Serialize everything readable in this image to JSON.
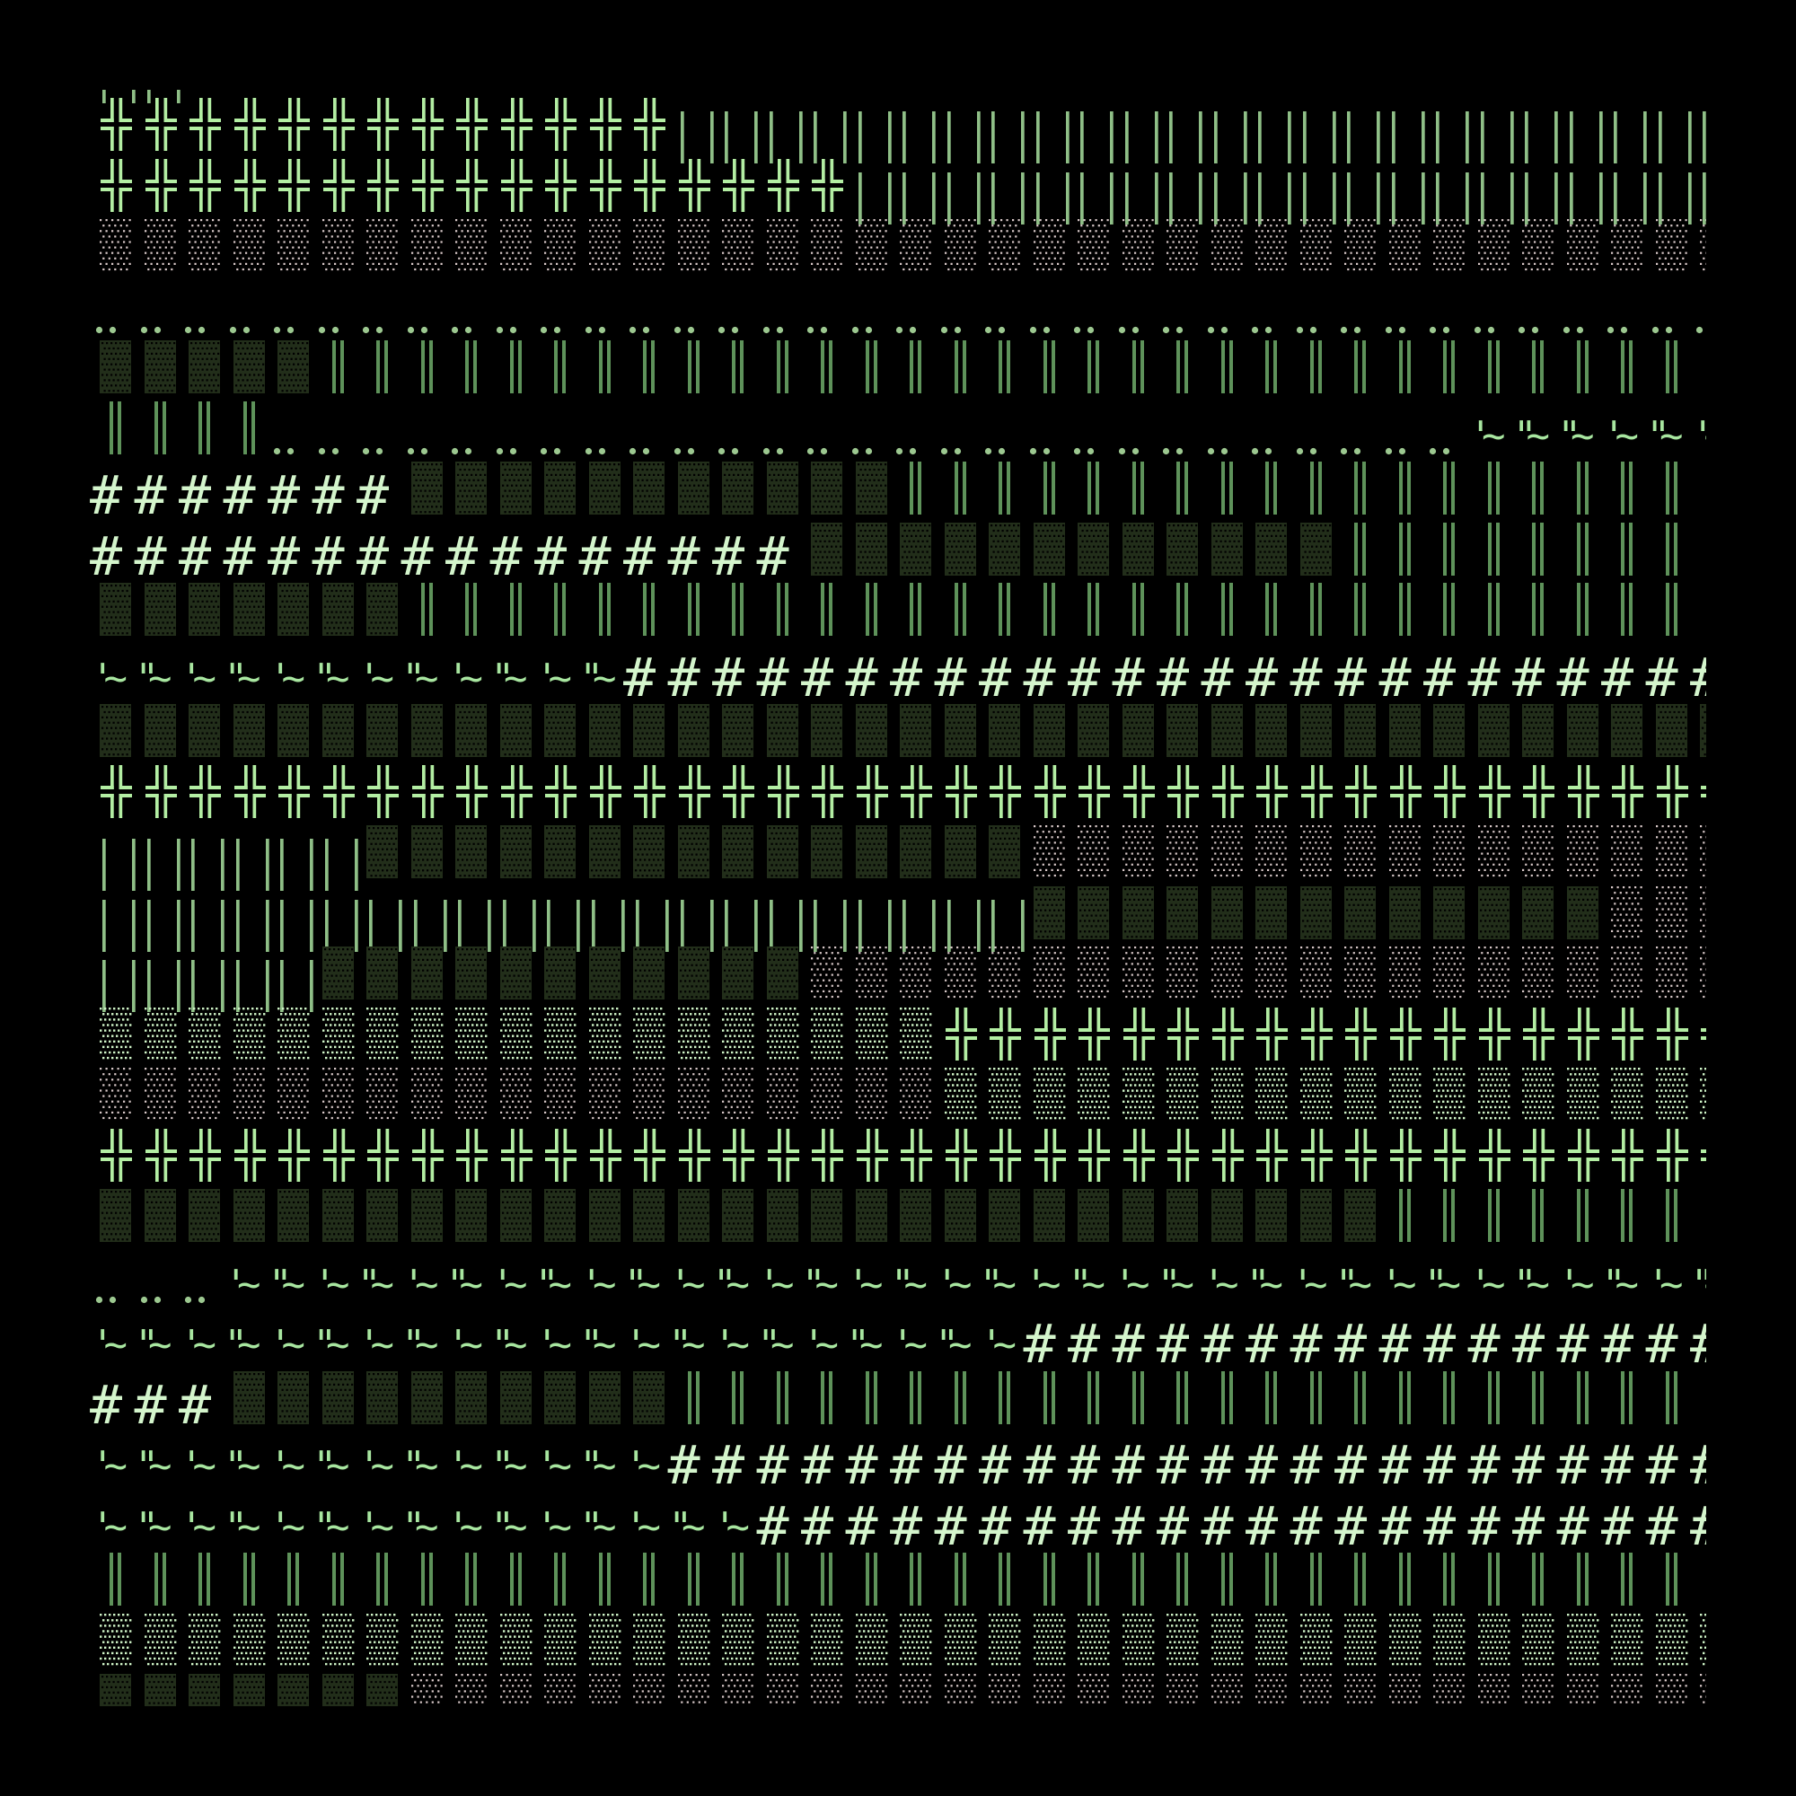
{
  "palette": {
    "background": "#000000",
    "double_cross": "#b3eea3",
    "double_bar": "#5e925a",
    "thin_bar": "#8fbf87",
    "hash": "#d4f5cc",
    "quote_tilde": "#a8e6a0",
    "dots": "#9cc890",
    "dark_shade": "#222e1a",
    "light_shade": "#d8c8c8",
    "medium_shade": "#d0f5c8"
  },
  "glyphs": {
    "double-cross": "╬",
    "double-bar": "║",
    "thin-bars": "|",
    "dark-shade": "▓",
    "medium-shade": "▒",
    "light-shade": "░",
    "dots": "¨",
    "hash": "#",
    "quote-tilde": "'~\"~"
  },
  "rows": [
    {
      "segments": [
        {
          "glyph": "thin-bars",
          "count": 2
        }
      ]
    },
    {
      "segments": [
        {
          "glyph": "double-cross",
          "count": 13
        },
        {
          "glyph": "thin-bars",
          "count": 24
        }
      ]
    },
    {
      "segments": [
        {
          "glyph": "double-cross",
          "count": 17
        },
        {
          "glyph": "thin-bars",
          "count": 20
        }
      ]
    },
    {
      "segments": [
        {
          "glyph": "light-shade",
          "count": 37
        }
      ]
    },
    {
      "segments": [
        {
          "glyph": "dots",
          "count": 37
        }
      ]
    },
    {
      "segments": [
        {
          "glyph": "dark-shade",
          "count": 5
        },
        {
          "glyph": "double-bar",
          "count": 32
        }
      ]
    },
    {
      "segments": [
        {
          "glyph": "double-bar",
          "count": 4
        },
        {
          "glyph": "dots",
          "count": 27
        },
        {
          "glyph": "quote-tilde",
          "text": "'~\"~\"~'~\"~'~"
        }
      ]
    },
    {
      "segments": [
        {
          "glyph": "hash",
          "count": 7
        },
        {
          "glyph": "dark-shade",
          "count": 11
        },
        {
          "glyph": "double-bar",
          "count": 19
        }
      ]
    },
    {
      "segments": [
        {
          "glyph": "hash",
          "count": 16
        },
        {
          "glyph": "dark-shade",
          "count": 12
        },
        {
          "glyph": "double-bar",
          "count": 9
        }
      ]
    },
    {
      "segments": [
        {
          "glyph": "dark-shade",
          "count": 7
        },
        {
          "glyph": "double-bar",
          "count": 30
        }
      ]
    },
    {
      "segments": [
        {
          "glyph": "quote-tilde",
          "text": "'~\"~'~\"~'~\"~'~\"~'~\"~'~\"~"
        },
        {
          "glyph": "hash",
          "count": 25
        }
      ]
    },
    {
      "segments": [
        {
          "glyph": "dark-shade",
          "count": 37
        }
      ]
    },
    {
      "segments": [
        {
          "glyph": "double-cross",
          "count": 37
        }
      ]
    },
    {
      "segments": [
        {
          "glyph": "thin-bars",
          "count": 6
        },
        {
          "glyph": "dark-shade",
          "count": 15
        },
        {
          "glyph": "light-shade",
          "count": 16
        }
      ]
    },
    {
      "segments": [
        {
          "glyph": "thin-bars",
          "count": 21
        },
        {
          "glyph": "dark-shade",
          "count": 13
        },
        {
          "glyph": "light-shade",
          "count": 3
        }
      ]
    },
    {
      "segments": [
        {
          "glyph": "thin-bars",
          "count": 5
        },
        {
          "glyph": "dark-shade",
          "count": 11
        },
        {
          "glyph": "light-shade",
          "count": 21
        }
      ]
    },
    {
      "segments": [
        {
          "glyph": "medium-shade",
          "count": 19
        },
        {
          "glyph": "double-cross",
          "count": 18
        }
      ]
    },
    {
      "segments": [
        {
          "glyph": "light-shade",
          "count": 19
        },
        {
          "glyph": "medium-shade",
          "count": 18
        }
      ]
    },
    {
      "segments": [
        {
          "glyph": "double-cross",
          "count": 37
        }
      ]
    },
    {
      "segments": [
        {
          "glyph": "dark-shade",
          "count": 29
        },
        {
          "glyph": "double-bar",
          "count": 8
        }
      ]
    },
    {
      "segments": [
        {
          "glyph": "dots",
          "count": 3
        },
        {
          "glyph": "quote-tilde",
          "text": "'~\"~'~\"~'~\"~'~\"~'~\"~'~\"~'~\"~'~\"~'~\"~'~\"~'~\"~'~\"~'~\"~'~\"~'~\"~'~\"~'~\"~"
        }
      ]
    },
    {
      "segments": [
        {
          "glyph": "quote-tilde",
          "text": "'~\"~'~\"~'~\"~'~\"~'~\"~'~\"~'~\"~'~\"~'~\"~'~\"~'~"
        },
        {
          "glyph": "hash",
          "count": 16
        }
      ]
    },
    {
      "segments": [
        {
          "glyph": "hash",
          "count": 3
        },
        {
          "glyph": "dark-shade",
          "count": 10
        },
        {
          "glyph": "double-bar",
          "count": 24
        }
      ]
    },
    {
      "segments": [
        {
          "glyph": "quote-tilde",
          "text": "'~\"~'~\"~'~\"~'~\"~'~\"~'~\"~'~"
        },
        {
          "glyph": "hash",
          "count": 24
        }
      ]
    },
    {
      "segments": [
        {
          "glyph": "quote-tilde",
          "text": "'~\"~'~\"~'~\"~'~\"~'~\"~'~\"~'~\"~'~"
        },
        {
          "glyph": "hash",
          "count": 22
        }
      ]
    },
    {
      "segments": [
        {
          "glyph": "double-bar",
          "count": 37
        }
      ]
    },
    {
      "segments": [
        {
          "glyph": "medium-shade",
          "count": 37
        }
      ]
    },
    {
      "segments": [
        {
          "glyph": "dark-shade",
          "count": 7
        },
        {
          "glyph": "light-shade",
          "count": 30
        }
      ]
    }
  ]
}
